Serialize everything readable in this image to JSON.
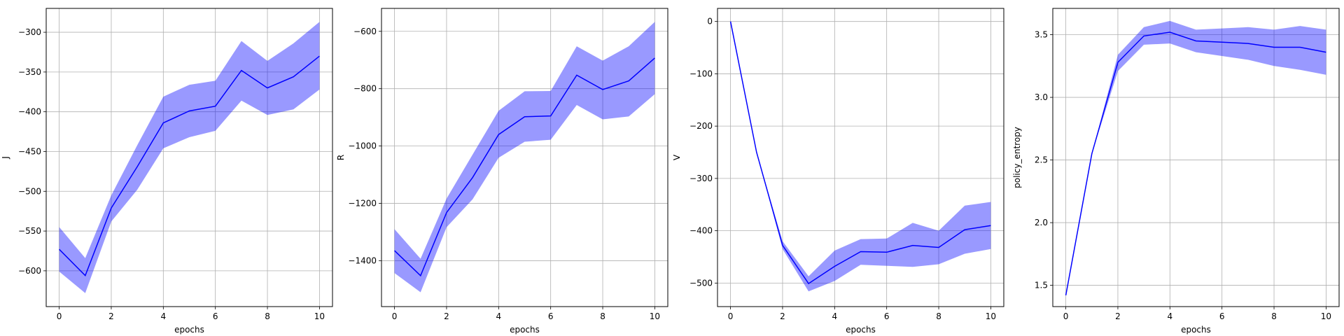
{
  "chart_data": [
    {
      "type": "line",
      "xlabel": "epochs",
      "ylabel": "J",
      "xlim": [
        -0.5,
        10.5
      ],
      "ylim": [
        -645,
        -270
      ],
      "xticks": [
        0,
        2,
        4,
        6,
        8,
        10
      ],
      "yticks": [
        -600,
        -550,
        -500,
        -450,
        -400,
        -350,
        -300
      ],
      "grid": true,
      "series": [
        {
          "x": [
            0,
            1,
            2,
            3,
            4,
            5,
            6,
            7,
            8,
            9,
            10
          ],
          "mean": [
            -573,
            -606,
            -521,
            -469,
            -414,
            -399,
            -393,
            -348,
            -370,
            -356,
            -330
          ],
          "upper": [
            -545,
            -584,
            -505,
            -442,
            -381,
            -366,
            -361,
            -311,
            -336,
            -314,
            -287
          ],
          "lower": [
            -601,
            -628,
            -538,
            -498,
            -446,
            -432,
            -424,
            -386,
            -404,
            -397,
            -372
          ]
        }
      ]
    },
    {
      "type": "line",
      "xlabel": "epochs",
      "ylabel": "R",
      "xlim": [
        -0.5,
        10.5
      ],
      "ylim": [
        -1560,
        -520
      ],
      "xticks": [
        0,
        2,
        4,
        6,
        8,
        10
      ],
      "yticks": [
        -1400,
        -1200,
        -1000,
        -800,
        -600
      ],
      "grid": true,
      "series": [
        {
          "x": [
            0,
            1,
            2,
            3,
            4,
            5,
            6,
            7,
            8,
            9,
            10
          ],
          "mean": [
            -1365,
            -1452,
            -1232,
            -1110,
            -960,
            -898,
            -895,
            -753,
            -803,
            -773,
            -693
          ],
          "upper": [
            -1290,
            -1393,
            -1183,
            -1030,
            -877,
            -809,
            -808,
            -652,
            -702,
            -652,
            -567
          ],
          "lower": [
            -1443,
            -1510,
            -1283,
            -1186,
            -1041,
            -985,
            -978,
            -857,
            -907,
            -897,
            -819
          ]
        }
      ]
    },
    {
      "type": "line",
      "xlabel": "epochs",
      "ylabel": "V",
      "xlim": [
        -0.5,
        10.5
      ],
      "ylim": [
        -545,
        25
      ],
      "xticks": [
        0,
        2,
        4,
        6,
        8,
        10
      ],
      "yticks": [
        0,
        -100,
        -200,
        -300,
        -400,
        -500
      ],
      "grid": true,
      "series": [
        {
          "x": [
            0,
            1,
            2,
            3,
            4,
            5,
            6,
            7,
            8,
            9,
            10
          ],
          "mean": [
            0,
            -250,
            -428,
            -501,
            -468,
            -440,
            -441,
            -428,
            -432,
            -398,
            -390
          ],
          "upper": [
            0,
            -250,
            -420,
            -487,
            -438,
            -416,
            -415,
            -385,
            -400,
            -352,
            -345
          ],
          "lower": [
            0,
            -250,
            -435,
            -516,
            -496,
            -465,
            -467,
            -469,
            -464,
            -444,
            -435
          ]
        }
      ]
    },
    {
      "type": "line",
      "xlabel": "epochs",
      "ylabel": "policy_entropy",
      "xlim": [
        -0.5,
        10.5
      ],
      "ylim": [
        1.33,
        3.71
      ],
      "xticks": [
        0,
        2,
        4,
        6,
        8,
        10
      ],
      "yticks": [
        1.5,
        2.0,
        2.5,
        3.0,
        3.5
      ],
      "grid": true,
      "series": [
        {
          "x": [
            0,
            1,
            2,
            3,
            4,
            5,
            6,
            7,
            8,
            9,
            10
          ],
          "mean": [
            1.42,
            2.55,
            3.28,
            3.49,
            3.52,
            3.45,
            3.44,
            3.43,
            3.4,
            3.4,
            3.36
          ],
          "upper": [
            1.42,
            2.55,
            3.34,
            3.56,
            3.61,
            3.54,
            3.55,
            3.56,
            3.54,
            3.57,
            3.54
          ],
          "lower": [
            1.42,
            2.55,
            3.21,
            3.42,
            3.43,
            3.36,
            3.33,
            3.3,
            3.25,
            3.22,
            3.18
          ]
        }
      ]
    }
  ],
  "style": {
    "line_color": "#0000ff",
    "band_color": "#0000ff",
    "grid_color": "#b0b0b0"
  }
}
